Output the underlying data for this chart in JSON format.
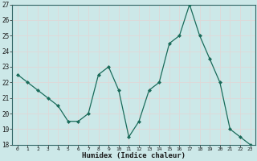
{
  "x": [
    0,
    1,
    2,
    3,
    4,
    5,
    6,
    7,
    8,
    9,
    10,
    11,
    12,
    13,
    14,
    15,
    16,
    17,
    18,
    19,
    20,
    21,
    22,
    23
  ],
  "y": [
    22.5,
    22.0,
    21.5,
    21.0,
    20.5,
    19.5,
    19.5,
    20.0,
    22.5,
    23.0,
    21.5,
    18.5,
    19.5,
    21.5,
    22.0,
    24.5,
    25.0,
    27.0,
    25.0,
    23.5,
    22.0,
    19.0,
    18.5,
    18.0
  ],
  "xlabel": "Humidex (Indice chaleur)",
  "ylim": [
    18,
    27
  ],
  "yticks": [
    18,
    19,
    20,
    21,
    22,
    23,
    24,
    25,
    26,
    27
  ],
  "xtick_labels": [
    "0",
    "1",
    "2",
    "3",
    "4",
    "5",
    "6",
    "7",
    "8",
    "9",
    "10",
    "11",
    "12",
    "13",
    "14",
    "15",
    "16",
    "17",
    "18",
    "19",
    "20",
    "21",
    "22",
    "23"
  ],
  "line_color": "#1a6b5a",
  "marker_color": "#1a6b5a",
  "bg_color": "#cce8e8",
  "grid_color": "#e8f8f8",
  "axis_color": "#336666"
}
